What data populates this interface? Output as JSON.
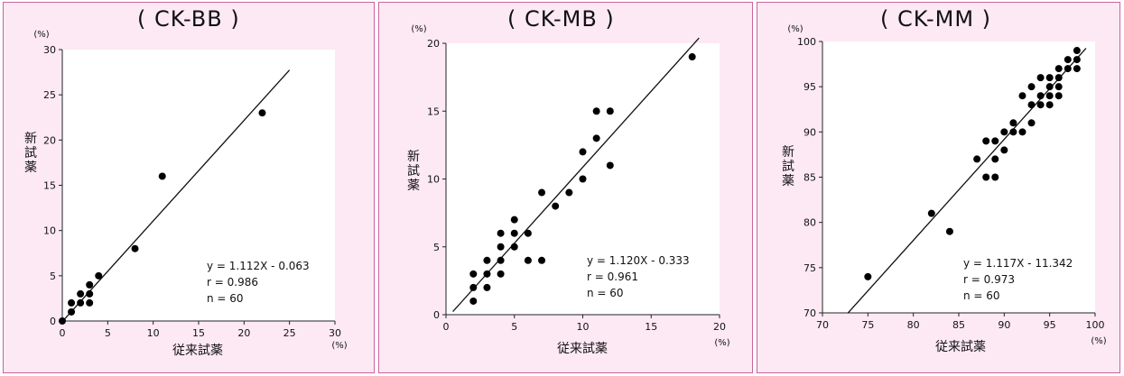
{
  "chart_data": [
    {
      "type": "scatter",
      "title": "( CK-BB )",
      "xlabel": "従来試薬",
      "ylabel": "新試薬",
      "x_unit": "(%)",
      "y_unit": "(%)",
      "xlim": [
        0,
        30
      ],
      "ylim": [
        0,
        30
      ],
      "xticks": [
        0,
        5,
        10,
        15,
        20,
        25,
        30
      ],
      "yticks": [
        0,
        5,
        10,
        15,
        20,
        25,
        30
      ],
      "grid": false,
      "regression": {
        "slope": 1.112,
        "intercept": -0.063,
        "x_range": [
          0,
          25
        ]
      },
      "annotations": [
        "y = 1.112X - 0.063",
        "r = 0.986",
        "n = 60"
      ],
      "points": [
        [
          0,
          0
        ],
        [
          1,
          1
        ],
        [
          1,
          2
        ],
        [
          2,
          2
        ],
        [
          2,
          3
        ],
        [
          3,
          2
        ],
        [
          3,
          3
        ],
        [
          3,
          4
        ],
        [
          4,
          5
        ],
        [
          8,
          8
        ],
        [
          11,
          16
        ],
        [
          22,
          23
        ]
      ]
    },
    {
      "type": "scatter",
      "title": "( CK-MB )",
      "xlabel": "従来試薬",
      "ylabel": "新試薬",
      "x_unit": "(%)",
      "y_unit": "(%)",
      "xlim": [
        0,
        20
      ],
      "ylim": [
        0,
        20
      ],
      "xticks": [
        0,
        5,
        10,
        15,
        20
      ],
      "yticks": [
        0,
        5,
        10,
        15,
        20
      ],
      "grid": false,
      "regression": {
        "slope": 1.12,
        "intercept": -0.333,
        "x_range": [
          0.5,
          18.5
        ]
      },
      "annotations": [
        "y = 1.120X - 0.333",
        "r = 0.961",
        "n = 60"
      ],
      "points": [
        [
          2,
          1
        ],
        [
          2,
          2
        ],
        [
          2,
          3
        ],
        [
          3,
          2
        ],
        [
          3,
          3
        ],
        [
          3,
          4
        ],
        [
          4,
          3
        ],
        [
          4,
          4
        ],
        [
          4,
          5
        ],
        [
          4,
          6
        ],
        [
          5,
          5
        ],
        [
          5,
          6
        ],
        [
          5,
          7
        ],
        [
          6,
          4
        ],
        [
          6,
          6
        ],
        [
          7,
          4
        ],
        [
          7,
          9
        ],
        [
          8,
          8
        ],
        [
          9,
          9
        ],
        [
          10,
          10
        ],
        [
          10,
          12
        ],
        [
          11,
          13
        ],
        [
          11,
          15
        ],
        [
          12,
          11
        ],
        [
          12,
          15
        ],
        [
          18,
          19
        ]
      ]
    },
    {
      "type": "scatter",
      "title": "( CK-MM )",
      "xlabel": "従来試薬",
      "ylabel": "新試薬",
      "x_unit": "(%)",
      "y_unit": "(%)",
      "xlim": [
        70,
        100
      ],
      "ylim": [
        70,
        100
      ],
      "xticks": [
        70,
        75,
        80,
        85,
        90,
        95,
        100
      ],
      "yticks": [
        70,
        75,
        80,
        85,
        90,
        95,
        100
      ],
      "grid": false,
      "regression": {
        "slope": 1.117,
        "intercept": -11.342,
        "x_range": [
          72.8,
          99
        ]
      },
      "annotations": [
        "y = 1.117X - 11.342",
        "r = 0.973",
        "n = 60"
      ],
      "points": [
        [
          75,
          74
        ],
        [
          82,
          81
        ],
        [
          84,
          79
        ],
        [
          87,
          87
        ],
        [
          88,
          85
        ],
        [
          88,
          89
        ],
        [
          89,
          85
        ],
        [
          89,
          87
        ],
        [
          89,
          89
        ],
        [
          90,
          88
        ],
        [
          90,
          90
        ],
        [
          91,
          90
        ],
        [
          91,
          91
        ],
        [
          92,
          90
        ],
        [
          92,
          94
        ],
        [
          93,
          91
        ],
        [
          93,
          93
        ],
        [
          93,
          95
        ],
        [
          94,
          93
        ],
        [
          94,
          94
        ],
        [
          94,
          96
        ],
        [
          95,
          93
        ],
        [
          95,
          94
        ],
        [
          95,
          95
        ],
        [
          95,
          96
        ],
        [
          96,
          94
        ],
        [
          96,
          95
        ],
        [
          96,
          96
        ],
        [
          96,
          97
        ],
        [
          97,
          97
        ],
        [
          97,
          98
        ],
        [
          98,
          97
        ],
        [
          98,
          98
        ],
        [
          98,
          99
        ]
      ]
    }
  ]
}
